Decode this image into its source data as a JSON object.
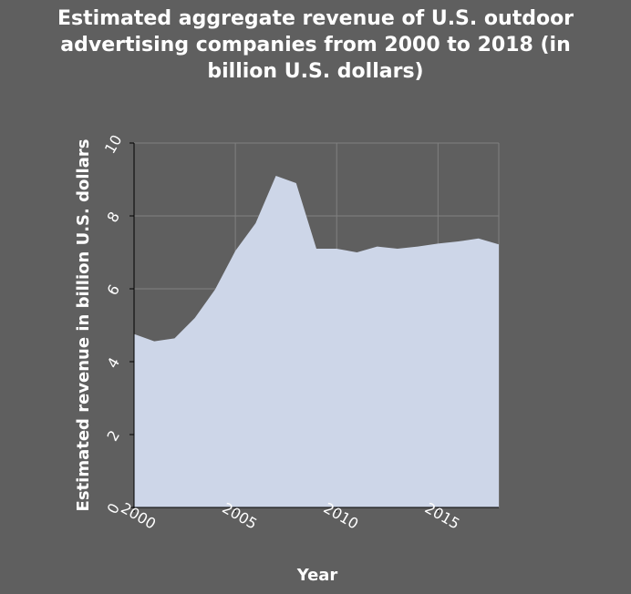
{
  "chart_data": {
    "type": "area",
    "title_lines": [
      "Estimated aggregate revenue of U.S. outdoor",
      "advertising companies from 2000 to 2018 (in",
      "billion U.S. dollars)"
    ],
    "xlabel": "Year",
    "ylabel": "Estimated revenue in billion U.S. dollars",
    "xlim": [
      2000,
      2018
    ],
    "ylim": [
      0,
      10
    ],
    "x_ticks": [
      2000,
      2005,
      2010,
      2015
    ],
    "y_ticks": [
      0,
      2,
      4,
      6,
      8,
      10
    ],
    "grid": true,
    "colors": {
      "background": "#5f5f5f",
      "fill": "#cdd6e8",
      "grid": "#808080"
    },
    "series": [
      {
        "x": [
          2000,
          2001,
          2002,
          2003,
          2004,
          2005,
          2006,
          2007,
          2008,
          2009,
          2010,
          2011,
          2012,
          2013,
          2014,
          2015,
          2016,
          2017,
          2018
        ],
        "values": [
          4.76,
          4.56,
          4.64,
          5.2,
          5.98,
          7.04,
          7.8,
          9.1,
          8.9,
          7.1,
          7.1,
          7.0,
          7.16,
          7.1,
          7.16,
          7.24,
          7.3,
          7.38,
          7.22
        ]
      }
    ]
  }
}
